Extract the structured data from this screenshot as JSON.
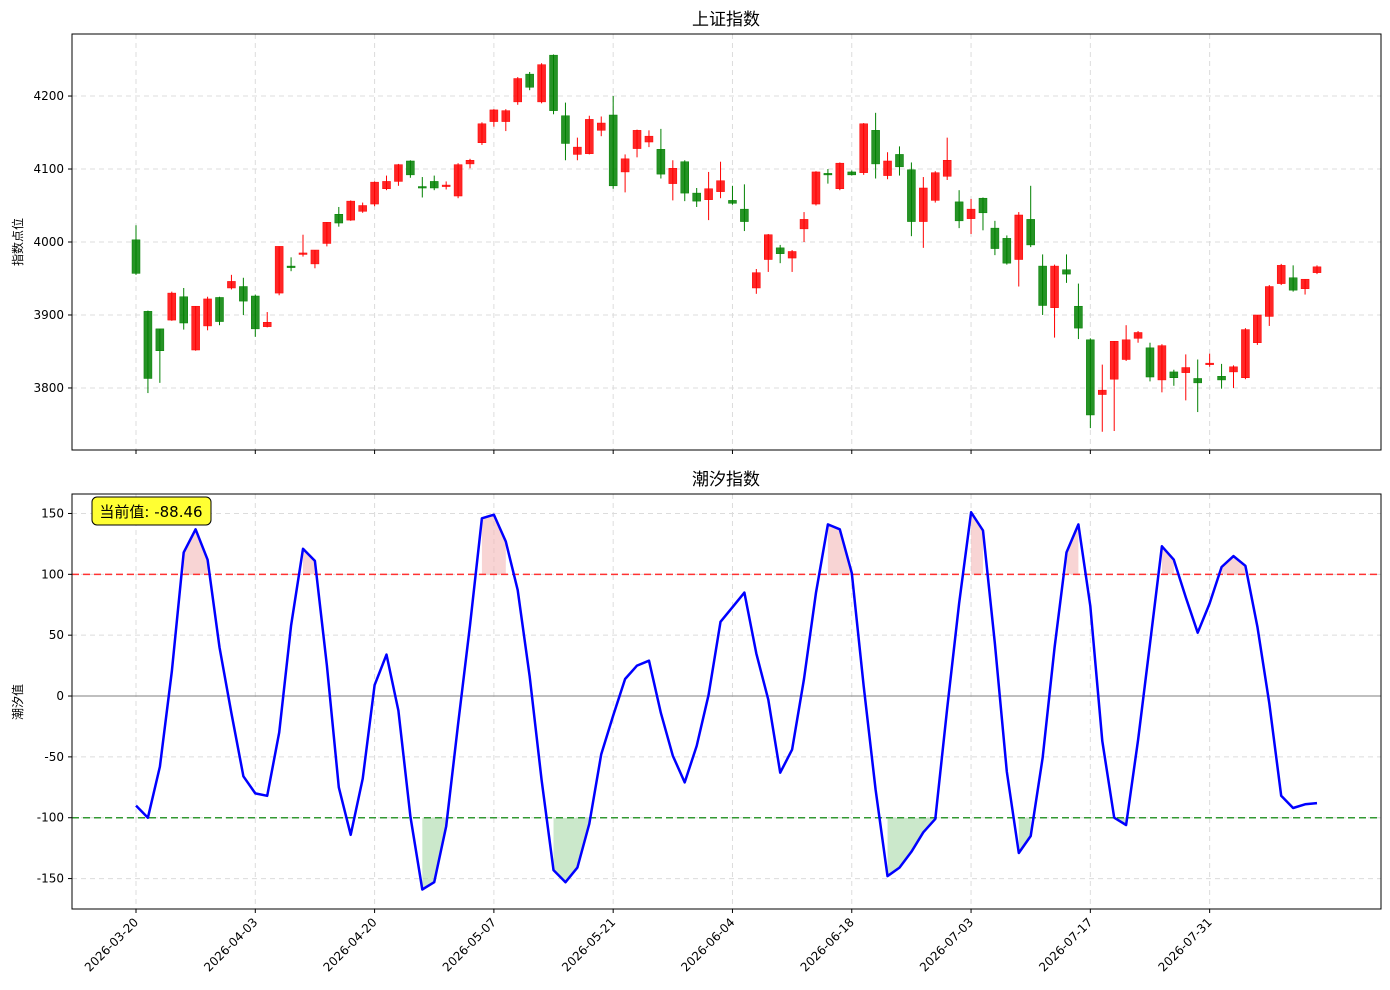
{
  "charts": [
    {
      "title": "上证指数",
      "ylabel": "指数点位",
      "yticks": [
        3800,
        3900,
        4000,
        4100,
        4200
      ]
    },
    {
      "title": "潮汐指数",
      "ylabel": "潮汐值",
      "yticks": [
        -150,
        -100,
        -50,
        0,
        50,
        100,
        150
      ],
      "annotation": "当前值: -88.46"
    }
  ],
  "xticks": [
    "2026-03-20",
    "2026-04-03",
    "2026-04-20",
    "2026-05-07",
    "2026-05-21",
    "2026-06-04",
    "2026-06-18",
    "2026-07-03",
    "2026-07-17",
    "2026-07-31"
  ],
  "colors": {
    "up": "#ff0000",
    "down": "#008000",
    "line": "#0000ff",
    "upper_line": "#ff3333",
    "lower_line": "#339933",
    "upper_fill": "#f4b8b8",
    "lower_fill": "#a8d8a8",
    "annotation_bg": "#ffff33"
  },
  "chart_data": [
    {
      "type": "candlestick",
      "title": "上证指数",
      "ylabel": "指数点位",
      "ylim": [
        3715,
        4285
      ],
      "grid": true,
      "candles": [
        [
          4003,
          3957,
          4023,
          3955
        ],
        [
          3905,
          3813,
          3906,
          3793
        ],
        [
          3881,
          3851,
          3881,
          3807
        ],
        [
          3893,
          3930,
          3932,
          3892
        ],
        [
          3925,
          3889,
          3937,
          3880
        ],
        [
          3852,
          3912,
          3912,
          3851
        ],
        [
          3885,
          3922,
          3925,
          3879
        ],
        [
          3924,
          3891,
          3925,
          3886
        ],
        [
          3937,
          3946,
          3955,
          3935
        ],
        [
          3939,
          3919,
          3951,
          3900
        ],
        [
          3926,
          3881,
          3928,
          3870
        ],
        [
          3884,
          3890,
          3904,
          3883
        ],
        [
          3930,
          3994,
          3994,
          3927
        ],
        [
          3967,
          3966,
          3979,
          3960
        ],
        [
          3984,
          3985,
          4010,
          3980
        ],
        [
          3970,
          3989,
          3989,
          3964
        ],
        [
          3998,
          4027,
          4027,
          3994
        ],
        [
          4038,
          4026,
          4048,
          4021
        ],
        [
          4030,
          4056,
          4057,
          4029
        ],
        [
          4042,
          4050,
          4054,
          4040
        ],
        [
          4052,
          4082,
          4083,
          4049
        ],
        [
          4073,
          4083,
          4091,
          4071
        ],
        [
          4083,
          4106,
          4107,
          4077
        ],
        [
          4111,
          4092,
          4112,
          4088
        ],
        [
          4076,
          4075,
          4089,
          4061
        ],
        [
          4083,
          4074,
          4091,
          4071
        ],
        [
          4078,
          4078,
          4083,
          4072
        ],
        [
          4063,
          4106,
          4108,
          4060
        ],
        [
          4107,
          4112,
          4114,
          4101
        ],
        [
          4136,
          4162,
          4164,
          4133
        ],
        [
          4165,
          4181,
          4182,
          4158
        ],
        [
          4165,
          4180,
          4182,
          4152
        ],
        [
          4192,
          4224,
          4226,
          4188
        ],
        [
          4230,
          4212,
          4233,
          4208
        ],
        [
          4192,
          4243,
          4245,
          4190
        ],
        [
          4256,
          4180,
          4257,
          4175
        ],
        [
          4173,
          4135,
          4191,
          4112
        ],
        [
          4120,
          4130,
          4143,
          4112
        ],
        [
          4121,
          4168,
          4173,
          4120
        ],
        [
          4153,
          4163,
          4172,
          4145
        ],
        [
          4174,
          4077,
          4200,
          4073
        ],
        [
          4096,
          4114,
          4120,
          4068
        ],
        [
          4128,
          4153,
          4154,
          4116
        ],
        [
          4137,
          4145,
          4153,
          4130
        ],
        [
          4127,
          4093,
          4155,
          4087
        ],
        [
          4080,
          4101,
          4112,
          4057
        ],
        [
          4110,
          4067,
          4112,
          4056
        ],
        [
          4067,
          4056,
          4074,
          4048
        ],
        [
          4058,
          4073,
          4096,
          4030
        ],
        [
          4069,
          4084,
          4110,
          4060
        ],
        [
          4057,
          4053,
          4077,
          4051
        ],
        [
          4045,
          4028,
          4079,
          4015
        ],
        [
          3937,
          3958,
          3963,
          3929
        ],
        [
          3976,
          4010,
          4011,
          3959
        ],
        [
          3992,
          3984,
          3996,
          3971
        ],
        [
          3978,
          3987,
          3989,
          3959
        ],
        [
          4018,
          4031,
          4041,
          4000
        ],
        [
          4052,
          4096,
          4097,
          4050
        ],
        [
          4094,
          4093,
          4100,
          4080
        ],
        [
          4073,
          4108,
          4109,
          4071
        ],
        [
          4096,
          4092,
          4098,
          4091
        ],
        [
          4095,
          4162,
          4163,
          4092
        ],
        [
          4153,
          4107,
          4177,
          4087
        ],
        [
          4091,
          4111,
          4123,
          4086
        ],
        [
          4120,
          4103,
          4131,
          4091
        ],
        [
          4099,
          4028,
          4109,
          4008
        ],
        [
          4028,
          4074,
          4089,
          3992
        ],
        [
          4057,
          4095,
          4097,
          4054
        ],
        [
          4090,
          4112,
          4143,
          4085
        ],
        [
          4055,
          4029,
          4071,
          4019
        ],
        [
          4032,
          4045,
          4059,
          4011
        ],
        [
          4060,
          4040,
          4061,
          4016
        ],
        [
          4019,
          3991,
          4029,
          3982
        ],
        [
          4005,
          3971,
          4009,
          3969
        ],
        [
          3976,
          4037,
          4041,
          3939
        ],
        [
          4031,
          3996,
          4077,
          3993
        ],
        [
          3967,
          3913,
          3983,
          3900
        ],
        [
          3910,
          3967,
          3969,
          3869
        ],
        [
          3962,
          3956,
          3983,
          3944
        ],
        [
          3912,
          3882,
          3943,
          3867
        ],
        [
          3866,
          3763,
          3868,
          3745
        ],
        [
          3791,
          3797,
          3832,
          3740
        ],
        [
          3812,
          3864,
          3864,
          3741
        ],
        [
          3839,
          3866,
          3886,
          3837
        ],
        [
          3868,
          3876,
          3878,
          3862
        ],
        [
          3855,
          3815,
          3862,
          3809
        ],
        [
          3811,
          3858,
          3860,
          3794
        ],
        [
          3822,
          3814,
          3825,
          3803
        ],
        [
          3821,
          3828,
          3846,
          3783
        ],
        [
          3813,
          3807,
          3839,
          3767
        ],
        [
          3833,
          3834,
          3847,
          3829
        ],
        [
          3816,
          3811,
          3833,
          3799
        ],
        [
          3822,
          3829,
          3831,
          3800
        ],
        [
          3814,
          3880,
          3882,
          3812
        ],
        [
          3862,
          3900,
          3900,
          3859
        ],
        [
          3898,
          3939,
          3941,
          3885
        ],
        [
          3943,
          3968,
          3970,
          3941
        ],
        [
          3951,
          3934,
          3968,
          3932
        ],
        [
          3936,
          3949,
          3949,
          3928
        ],
        [
          3958,
          3966,
          3968,
          3956
        ]
      ]
    },
    {
      "type": "line",
      "title": "潮汐指数",
      "ylabel": "潮汐值",
      "ylim": [
        -175,
        166
      ],
      "upper_threshold": 100,
      "lower_threshold": -100,
      "grid": true,
      "values": [
        -90,
        -100,
        -58,
        20,
        118,
        137,
        112,
        40,
        -14,
        -66,
        -80,
        -82,
        -30,
        58,
        121,
        111,
        25,
        -75,
        -114,
        -68,
        9,
        34,
        -12,
        -99,
        -159,
        -153,
        -107,
        -23,
        58,
        146,
        149,
        127,
        87,
        16,
        -69,
        -143,
        -153,
        -141,
        -105,
        -48,
        -16,
        14,
        25,
        29,
        -14,
        -49,
        -71,
        -41,
        1,
        61,
        73,
        85,
        35,
        -3,
        -63,
        -44,
        14,
        85,
        141,
        137,
        101,
        8,
        -77,
        -148,
        -141,
        -128,
        -112,
        -101,
        -10,
        76,
        151,
        136,
        43,
        -62,
        -129,
        -115,
        -51,
        40,
        118,
        141,
        74,
        -37,
        -100,
        -106,
        -36,
        43,
        123,
        112,
        81,
        52,
        76,
        106,
        115,
        107,
        57,
        -6,
        -82,
        -92,
        -89,
        -88
      ]
    }
  ]
}
